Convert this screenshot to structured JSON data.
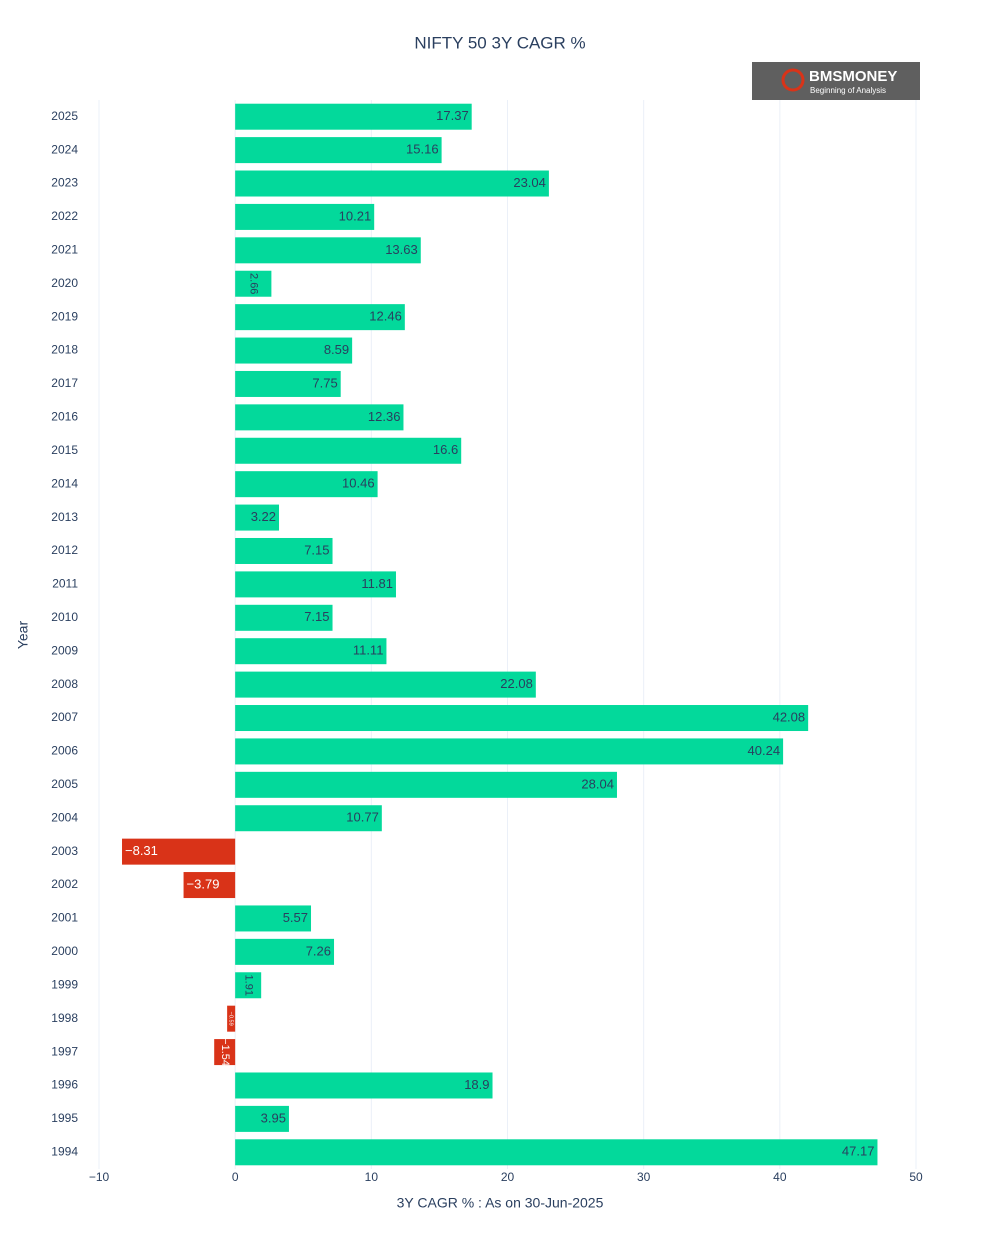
{
  "chart_data": {
    "type": "bar",
    "orientation": "horizontal",
    "title": "NIFTY 50 3Y CAGR %",
    "x_label": "3Y CAGR % : As on 30-Jun-2025",
    "y_label": "Year",
    "logo": {
      "name": "BMSMONEY",
      "tagline": "Beginning of Analysis"
    },
    "categories": [
      "2025",
      "2024",
      "2023",
      "2022",
      "2021",
      "2020",
      "2019",
      "2018",
      "2017",
      "2016",
      "2015",
      "2014",
      "2013",
      "2012",
      "2011",
      "2010",
      "2009",
      "2008",
      "2007",
      "2006",
      "2005",
      "2004",
      "2003",
      "2002",
      "2001",
      "2000",
      "1999",
      "1998",
      "1997",
      "1996",
      "1995",
      "1994"
    ],
    "values": [
      17.37,
      15.16,
      23.04,
      10.21,
      13.63,
      2.66,
      12.46,
      8.59,
      7.75,
      12.36,
      16.6,
      10.46,
      3.22,
      7.15,
      11.81,
      7.15,
      11.11,
      22.08,
      42.08,
      40.24,
      28.04,
      10.77,
      -8.31,
      -3.79,
      5.57,
      7.26,
      1.91,
      -0.59,
      -1.54,
      18.9,
      3.95,
      47.17
    ],
    "value_labels": [
      "17.37",
      "15.16",
      "23.04",
      "10.21",
      "13.63",
      "2.66",
      "12.46",
      "8.59",
      "7.75",
      "12.36",
      "16.6",
      "10.46",
      "3.22",
      "7.15",
      "11.81",
      "7.15",
      "11.11",
      "22.08",
      "42.08",
      "40.24",
      "28.04",
      "10.77",
      "−8.31",
      "−3.79",
      "5.57",
      "7.26",
      "1.91",
      "−0.59",
      "−1.54",
      "18.9",
      "3.95",
      "47.17"
    ],
    "positive_color": "#03d99b",
    "negative_color": "#d93318",
    "xlim": [
      -10,
      50
    ],
    "xticks": [
      {
        "value": -10,
        "label": "−10"
      },
      0,
      10,
      20,
      30,
      40,
      50
    ],
    "grid": true
  }
}
